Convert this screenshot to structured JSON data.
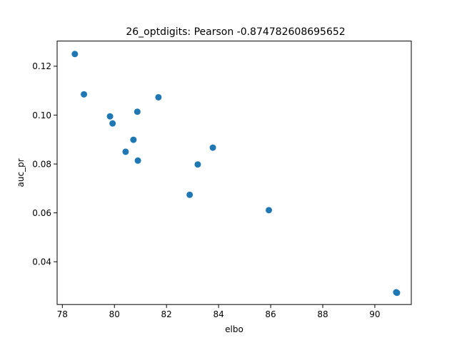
{
  "chart_data": {
    "type": "scatter",
    "title": "26_optdigits: Pearson -0.874782608695652",
    "xlabel": "elbo",
    "ylabel": "auc_pr",
    "xlim": [
      77.8,
      91.4
    ],
    "ylim": [
      0.0225,
      0.1303
    ],
    "xticks": [
      78,
      80,
      82,
      84,
      86,
      88,
      90
    ],
    "xtick_labels": [
      "78",
      "80",
      "82",
      "84",
      "86",
      "88",
      "90"
    ],
    "yticks": [
      0.04,
      0.06,
      0.08,
      0.1,
      0.12
    ],
    "ytick_labels": [
      "0.04",
      "0.06",
      "0.08",
      "0.10",
      "0.12"
    ],
    "grid": false,
    "series": [
      {
        "color": "#1f77b4",
        "points": [
          {
            "x": 78.48,
            "y": 0.125
          },
          {
            "x": 78.83,
            "y": 0.1085
          },
          {
            "x": 79.83,
            "y": 0.0995
          },
          {
            "x": 79.93,
            "y": 0.0966
          },
          {
            "x": 80.43,
            "y": 0.085
          },
          {
            "x": 80.73,
            "y": 0.0899
          },
          {
            "x": 80.88,
            "y": 0.1014
          },
          {
            "x": 80.9,
            "y": 0.0814
          },
          {
            "x": 81.69,
            "y": 0.1073
          },
          {
            "x": 82.89,
            "y": 0.0674
          },
          {
            "x": 83.2,
            "y": 0.0798
          },
          {
            "x": 83.78,
            "y": 0.0867
          },
          {
            "x": 85.93,
            "y": 0.0611
          },
          {
            "x": 90.82,
            "y": 0.0275
          },
          {
            "x": 90.85,
            "y": 0.0273
          }
        ]
      }
    ]
  }
}
